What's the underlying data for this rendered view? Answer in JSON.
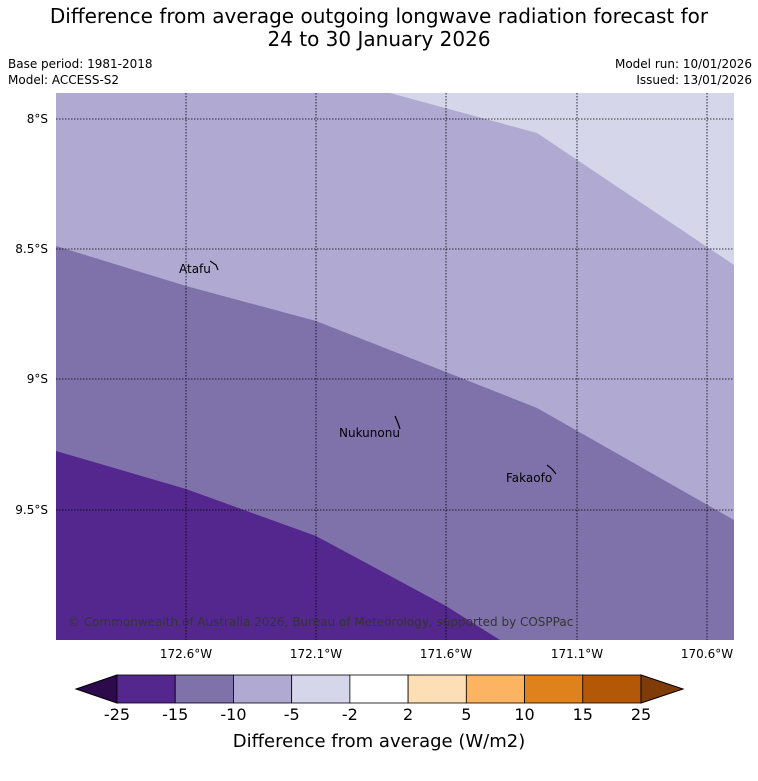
{
  "title_line1": "Difference from average outgoing longwave radiation forecast for",
  "title_line2": "24 to 30 January 2026",
  "meta": {
    "base_period": "Base period: 1981-2018",
    "model": "Model: ACCESS-S2",
    "model_run": "Model run: 10/01/2026",
    "issued": "Issued: 13/01/2026"
  },
  "map": {
    "lat_labels": [
      "8°S",
      "8.5°S",
      "9°S",
      "9.5°S"
    ],
    "lon_labels": [
      "172.6°W",
      "172.1°W",
      "171.6°W",
      "171.1°W",
      "170.6°W"
    ],
    "places": [
      "Atafu",
      "Nukunonu",
      "Fakaofo"
    ],
    "copyright": "© Commonwealth of Australia 2026, Bureau of Meteorology, supported by COSPPac"
  },
  "colorbar": {
    "ticks": [
      "-25",
      "-15",
      "-10",
      "-5",
      "-2",
      "2",
      "5",
      "10",
      "15",
      "25"
    ],
    "label": "Difference from average (W/m2)",
    "colors": [
      "#2d0a4e",
      "#54278f",
      "#7f72ab",
      "#b0a9d1",
      "#d6d6ea",
      "#ffffff",
      "#fddfb5",
      "#fdb462",
      "#e0821c",
      "#b35806",
      "#7f3b08"
    ]
  }
}
